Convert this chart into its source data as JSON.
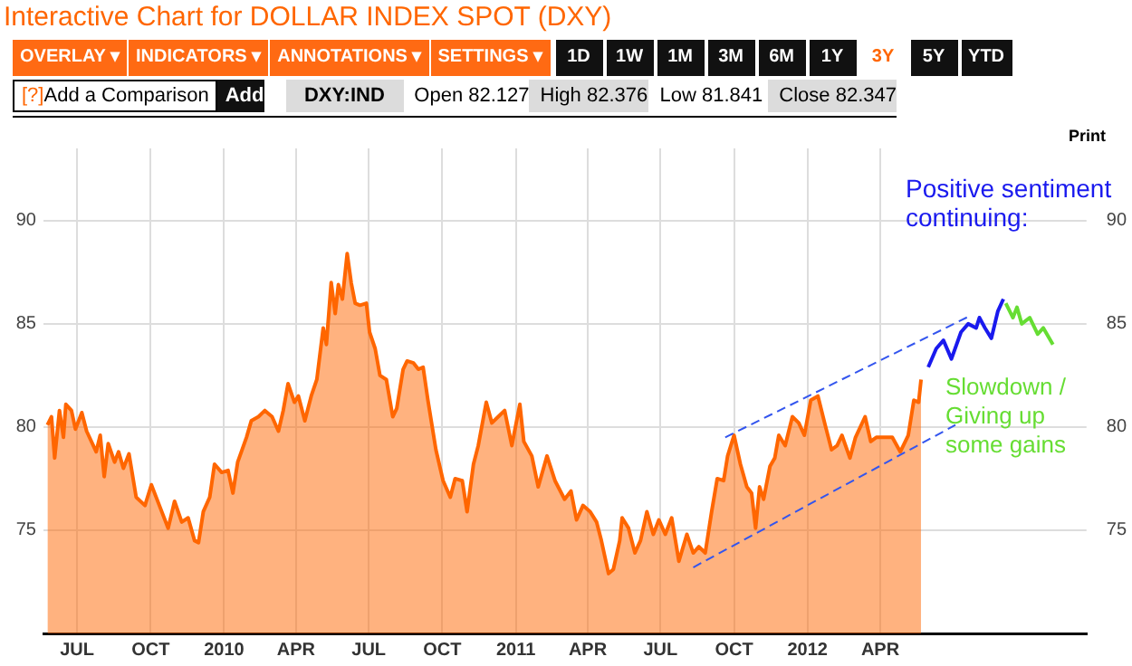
{
  "chart_data": {
    "type": "area",
    "title": "Interactive Chart for DOLLAR INDEX SPOT (DXY)",
    "annotations": [
      "OVERLAY ▾",
      "INDICATORS ▾",
      "ANNOTATIONS ▾",
      "SETTINGS ▾",
      "1D",
      "1W",
      "1M",
      "3M",
      "6M",
      "1Y",
      "3Y",
      "5Y",
      "YTD",
      "[?]",
      "Add a Comparison",
      "Add",
      "DXY:IND",
      "Open 82.127",
      "High 82.376",
      "Low 81.841",
      "Close 82.347",
      "Print",
      "Positive sentiment\ncontinuing:",
      "Slowdown /\nGiving up\nsome gains"
    ],
    "xlim": [
      "2009-05-20",
      "2012-12-15"
    ],
    "xticks": [
      {
        "value": "2009-07-01",
        "label": "JUL"
      },
      {
        "value": "2009-10-01",
        "label": "OCT"
      },
      {
        "value": "2010-01-01",
        "label": "2010"
      },
      {
        "value": "2010-04-01",
        "label": "APR"
      },
      {
        "value": "2010-07-01",
        "label": "JUL"
      },
      {
        "value": "2010-10-01",
        "label": "OCT"
      },
      {
        "value": "2011-01-01",
        "label": "2011"
      },
      {
        "value": "2011-04-01",
        "label": "APR"
      },
      {
        "value": "2011-07-01",
        "label": "JUL"
      },
      {
        "value": "2011-10-01",
        "label": "OCT"
      },
      {
        "value": "2012-01-01",
        "label": "2012"
      },
      {
        "value": "2012-04-01",
        "label": "APR"
      }
    ],
    "ylim": [
      70,
      93.5
    ],
    "yticks": [
      75,
      80,
      85,
      90
    ],
    "y2lim": [
      70,
      93.5
    ],
    "y2ticks": [
      75,
      80,
      85,
      90
    ],
    "grid": true,
    "legend": false,
    "marker": "none",
    "series": [
      {
        "type": "area",
        "color": "#ff6600",
        "x": [
          "2009-05-25",
          "2009-05-30",
          "2009-06-03",
          "2009-06-09",
          "2009-06-14",
          "2009-06-17",
          "2009-06-24",
          "2009-06-29",
          "2009-07-07",
          "2009-07-13",
          "2009-07-25",
          "2009-07-30",
          "2009-08-04",
          "2009-08-09",
          "2009-08-17",
          "2009-08-22",
          "2009-08-28",
          "2009-09-04",
          "2009-09-13",
          "2009-09-24",
          "2009-10-02",
          "2009-10-13",
          "2009-10-23",
          "2009-10-31",
          "2009-11-09",
          "2009-11-17",
          "2009-11-25",
          "2009-11-30",
          "2009-12-06",
          "2009-12-14",
          "2009-12-20",
          "2009-12-29",
          "2010-01-06",
          "2010-01-12",
          "2010-01-18",
          "2010-01-29",
          "2010-02-04",
          "2010-02-13",
          "2010-02-21",
          "2010-03-02",
          "2010-03-10",
          "2010-03-16",
          "2010-03-22",
          "2010-03-30",
          "2010-04-04",
          "2010-04-12",
          "2010-04-20",
          "2010-04-27",
          "2010-05-05",
          "2010-05-09",
          "2010-05-15",
          "2010-05-20",
          "2010-05-24",
          "2010-05-29",
          "2010-06-04",
          "2010-06-09",
          "2010-06-14",
          "2010-06-20",
          "2010-06-28",
          "2010-07-02",
          "2010-07-09",
          "2010-07-15",
          "2010-07-23",
          "2010-07-31",
          "2010-08-05",
          "2010-08-13",
          "2010-08-18",
          "2010-08-26",
          "2010-09-01",
          "2010-09-07",
          "2010-09-13",
          "2010-09-23",
          "2010-10-02",
          "2010-10-11",
          "2010-10-17",
          "2010-10-26",
          "2010-11-01",
          "2010-11-09",
          "2010-11-15",
          "2010-11-25",
          "2010-12-02",
          "2010-12-10",
          "2010-12-18",
          "2010-12-27",
          "2011-01-06",
          "2011-01-11",
          "2011-01-21",
          "2011-01-29",
          "2011-02-09",
          "2011-02-19",
          "2011-03-03",
          "2011-03-11",
          "2011-03-18",
          "2011-03-26",
          "2011-04-04",
          "2011-04-12",
          "2011-04-18",
          "2011-04-27",
          "2011-05-03",
          "2011-05-11",
          "2011-05-14",
          "2011-05-22",
          "2011-05-30",
          "2011-06-06",
          "2011-06-14",
          "2011-06-22",
          "2011-06-29",
          "2011-07-07",
          "2011-07-15",
          "2011-07-24",
          "2011-08-03",
          "2011-08-11",
          "2011-08-18",
          "2011-08-26",
          "2011-09-03",
          "2011-09-10",
          "2011-09-18",
          "2011-09-23",
          "2011-10-01",
          "2011-10-09",
          "2011-10-17",
          "2011-10-23",
          "2011-10-28",
          "2011-11-02",
          "2011-11-07",
          "2011-11-15",
          "2011-11-21",
          "2011-11-26",
          "2011-12-04",
          "2011-12-13",
          "2011-12-21",
          "2011-12-28",
          "2012-01-05",
          "2012-01-14",
          "2012-01-23",
          "2012-01-31",
          "2012-02-07",
          "2012-02-13",
          "2012-02-23",
          "2012-03-01",
          "2012-03-13",
          "2012-03-20",
          "2012-03-27",
          "2012-04-05",
          "2012-04-16",
          "2012-04-26",
          "2012-05-06",
          "2012-05-13",
          "2012-05-19",
          "2012-05-22"
        ],
        "values": [
          80.1,
          80.5,
          78.5,
          80.8,
          79.5,
          81.1,
          80.8,
          79.9,
          80.7,
          79.8,
          78.8,
          79.6,
          77.6,
          79.2,
          78.3,
          78.8,
          78.0,
          78.7,
          76.6,
          76.2,
          77.2,
          76.1,
          75.1,
          76.4,
          75.4,
          75.6,
          74.5,
          74.4,
          75.9,
          76.6,
          78.2,
          77.8,
          77.9,
          76.8,
          78.3,
          79.5,
          80.3,
          80.5,
          80.8,
          80.5,
          79.8,
          80.8,
          82.1,
          81.2,
          81.5,
          80.3,
          81.5,
          82.3,
          84.8,
          84.0,
          87.0,
          85.5,
          86.9,
          86.2,
          88.4,
          87.0,
          86.0,
          85.9,
          86.0,
          84.6,
          83.8,
          82.5,
          82.3,
          80.5,
          80.9,
          82.8,
          83.2,
          83.1,
          82.8,
          82.9,
          81.3,
          78.9,
          77.4,
          76.6,
          77.5,
          77.4,
          75.9,
          78.2,
          79.1,
          81.2,
          80.2,
          80.5,
          80.8,
          79.1,
          81.1,
          79.3,
          78.6,
          77.1,
          78.6,
          77.4,
          76.5,
          76.9,
          75.5,
          76.2,
          75.9,
          75.4,
          74.5,
          72.9,
          73.1,
          74.5,
          75.6,
          75.1,
          73.9,
          74.5,
          75.9,
          74.8,
          75.5,
          74.8,
          75.6,
          73.5,
          74.8,
          73.9,
          74.2,
          73.9,
          75.9,
          77.5,
          77.4,
          78.6,
          79.6,
          78.2,
          77.1,
          76.8,
          75.1,
          77.1,
          76.5,
          78.1,
          78.5,
          79.6,
          79.1,
          80.5,
          80.2,
          79.6,
          81.3,
          81.5,
          80.1,
          78.9,
          79.1,
          79.6,
          78.5,
          79.5,
          80.5,
          79.3,
          79.5,
          79.5,
          79.5,
          78.8,
          79.6,
          81.3,
          81.2,
          82.3
        ]
      },
      {
        "type": "line",
        "color": "#1a1aee",
        "x": [
          "2012-05-31",
          "2012-06-10",
          "2012-06-19",
          "2012-06-29",
          "2012-07-11",
          "2012-07-20",
          "2012-07-30",
          "2012-08-03",
          "2012-08-10",
          "2012-08-18",
          "2012-08-26",
          "2012-09-02"
        ],
        "values": [
          82.9,
          83.8,
          84.2,
          83.3,
          84.6,
          85.0,
          84.8,
          85.3,
          84.8,
          84.3,
          85.6,
          86.2
        ]
      },
      {
        "type": "line",
        "color": "#66dd33",
        "x": [
          "2012-09-05",
          "2012-09-14",
          "2012-09-19",
          "2012-09-25",
          "2012-10-05",
          "2012-10-15",
          "2012-10-22",
          "2012-11-03"
        ],
        "values": [
          86.0,
          85.3,
          85.8,
          85.0,
          85.3,
          84.5,
          84.8,
          84.0
        ]
      },
      {
        "type": "line",
        "color": "#3355ee",
        "line_style": "dashed",
        "x": [
          "2011-09-20",
          "2012-07-23"
        ],
        "values": [
          79.5,
          85.4
        ]
      },
      {
        "type": "line",
        "color": "#3355ee",
        "line_style": "dashed",
        "x": [
          "2011-08-11",
          "2012-07-04"
        ],
        "values": [
          73.2,
          80.1
        ]
      }
    ]
  }
}
